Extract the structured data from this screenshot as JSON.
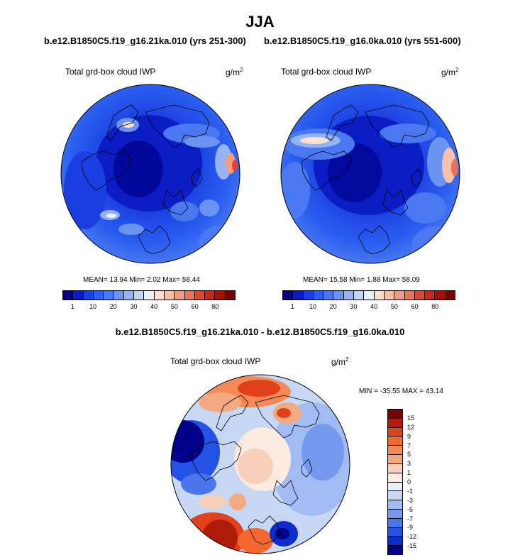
{
  "figure": {
    "season": "JJA",
    "diff_title": "b.e12.B1850C5.f19_g16.21ka.010 - b.e12.B1850C5.f19_g16.0ka.010"
  },
  "panels": [
    {
      "case_title": "b.e12.B1850C5.f19_g16.21ka.010 (yrs 251-300)",
      "field": "Total grd-box cloud IWP",
      "unit": "g/m",
      "unit_exp": "2",
      "stats_text": "MEAN=  13.94  Min=   2.02  Max=  58.44",
      "stats": {
        "mean": 13.94,
        "min": 2.02,
        "max": 58.44
      }
    },
    {
      "case_title": "b.e12.B1850C5.f19_g16.0ka.010 (yrs 551-600)",
      "field": "Total grd-box cloud IWP",
      "unit": "g/m",
      "unit_exp": "2",
      "stats_text": "MEAN=  15.58  Min=   1.88  Max=  58.09",
      "stats": {
        "mean": 15.58,
        "min": 1.88,
        "max": 58.09
      }
    },
    {
      "field": "Total grd-box cloud IWP",
      "unit": "g/m",
      "unit_exp": "2",
      "stats_text": "MIN = -35.55 MAX =  43.14",
      "stats": {
        "min": -35.55,
        "max": 43.14
      }
    }
  ],
  "colorbar_abs": {
    "colors": [
      "#00008a",
      "#0a1cc2",
      "#1a3ee0",
      "#2a5ff0",
      "#4a78f0",
      "#6b93f0",
      "#93b3f3",
      "#c2d6f8",
      "#ecf2fb",
      "#fbe0d4",
      "#f8c0a8",
      "#f29c80",
      "#eb7354",
      "#e0462b",
      "#c82814",
      "#a01406",
      "#720404"
    ],
    "ticks": [
      "1",
      "10",
      "20",
      "30",
      "40",
      "50",
      "60",
      "80"
    ]
  },
  "colorbar_diff": {
    "colors": [
      "#720404",
      "#b01c0a",
      "#e0401a",
      "#f2682e",
      "#f48a55",
      "#f4aa80",
      "#f8cfb8",
      "#fcebe0",
      "#eaf0fa",
      "#c8d8f4",
      "#a0bcf2",
      "#7699f0",
      "#4a75ec",
      "#2452e4",
      "#0d2ccc",
      "#00008a"
    ],
    "ticks": [
      "15",
      "12",
      "9",
      "7",
      "5",
      "3",
      "1",
      "0",
      "-1",
      "-3",
      "-5",
      "-7",
      "-9",
      "-12",
      "-15"
    ]
  }
}
